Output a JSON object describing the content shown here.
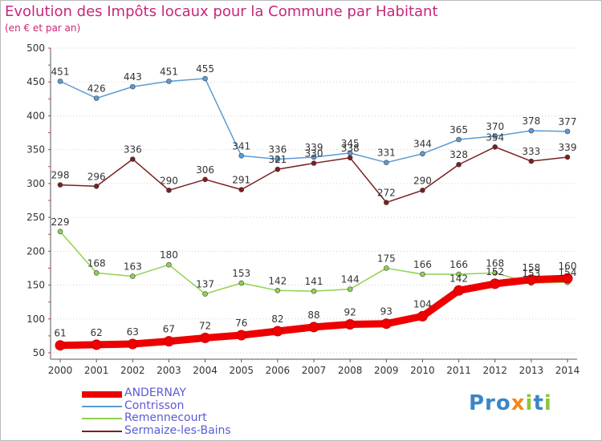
{
  "header": {
    "title": "Evolution des Impôts locaux pour la Commune par Habitant",
    "subtitle": "(en € et par an)"
  },
  "logo": {
    "p": "Pro",
    "x": "x",
    "i": "i",
    "t": "t",
    "i2": "i"
  },
  "chart_data": {
    "type": "line",
    "title": "Evolution des Impôts locaux pour la Commune par Habitant",
    "subtitle": "(en € et par an)",
    "xlabel": "",
    "ylabel": "",
    "ylim": [
      50,
      500
    ],
    "yticks": [
      50,
      100,
      150,
      200,
      250,
      300,
      350,
      400,
      450,
      500
    ],
    "grid": "horizontal dotted",
    "legend_position": "bottom-left",
    "categories": [
      "2000",
      "2001",
      "2002",
      "2003",
      "2004",
      "2005",
      "2006",
      "2007",
      "2008",
      "2009",
      "2010",
      "2011",
      "2012",
      "2013",
      "2014"
    ],
    "series": [
      {
        "name": "ANDERNAY",
        "color": "#ee0000",
        "values": [
          61,
          62,
          63,
          67,
          72,
          76,
          82,
          88,
          92,
          93,
          104,
          142,
          152,
          158,
          160
        ]
      },
      {
        "name": "Contrisson",
        "color": "#5b9bd5",
        "values": [
          451,
          426,
          443,
          451,
          455,
          341,
          336,
          339,
          345,
          331,
          344,
          365,
          370,
          378,
          377
        ]
      },
      {
        "name": "Remennecourt",
        "color": "#8fd14f",
        "values": [
          229,
          168,
          163,
          180,
          137,
          153,
          142,
          141,
          144,
          175,
          166,
          166,
          168,
          153,
          154
        ]
      },
      {
        "name": "Sermaize-les-Bains",
        "color": "#7a1f1f",
        "values": [
          298,
          296,
          336,
          290,
          306,
          291,
          321,
          330,
          338,
          272,
          290,
          328,
          354,
          333,
          339
        ]
      }
    ]
  }
}
